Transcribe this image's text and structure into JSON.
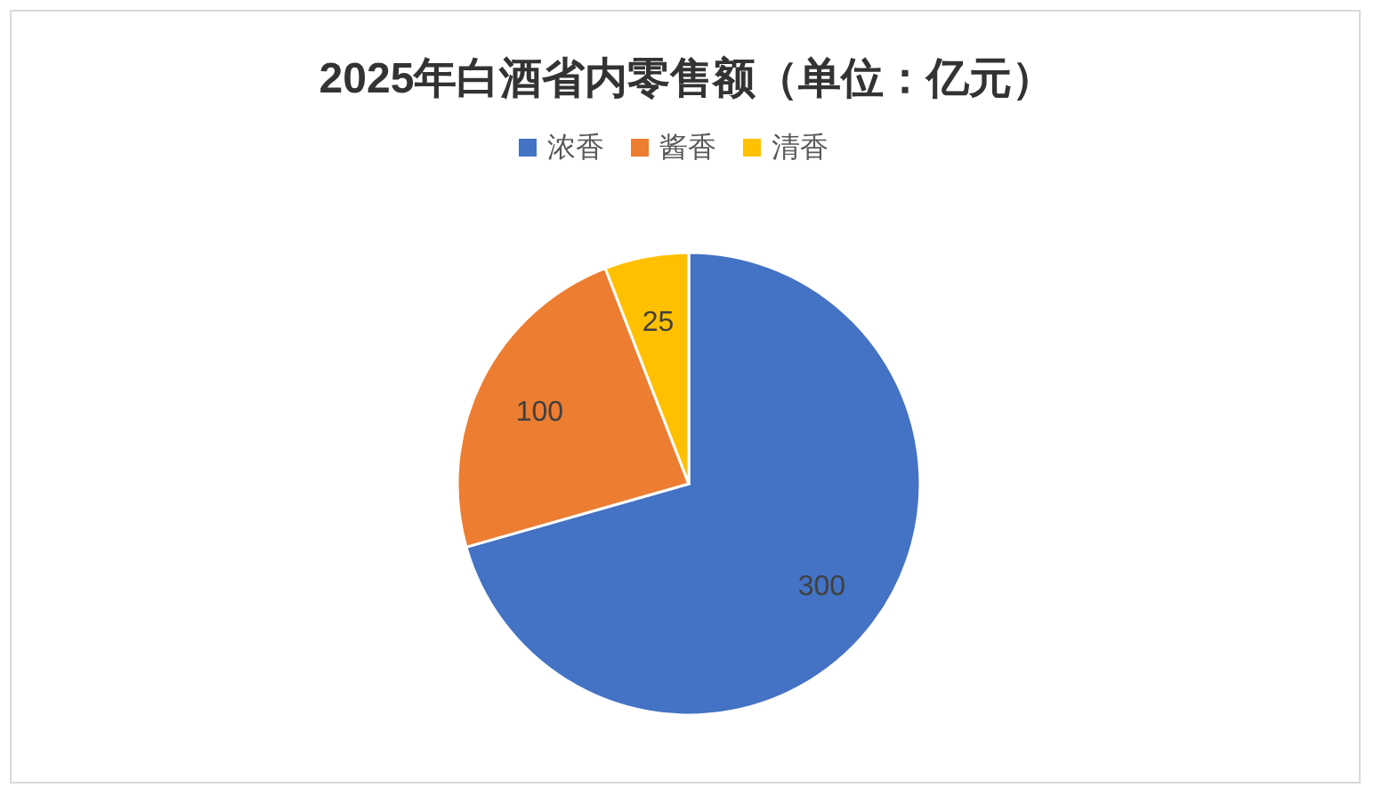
{
  "chart_data": {
    "type": "pie",
    "title": "2025年白酒省内零售额（单位：亿元）",
    "categories": [
      "浓香",
      "酱香",
      "清香"
    ],
    "values": [
      300,
      100,
      25
    ],
    "colors": [
      "#4472c4",
      "#ed7d31",
      "#ffc000"
    ],
    "data_labels": true,
    "legend": "top"
  }
}
